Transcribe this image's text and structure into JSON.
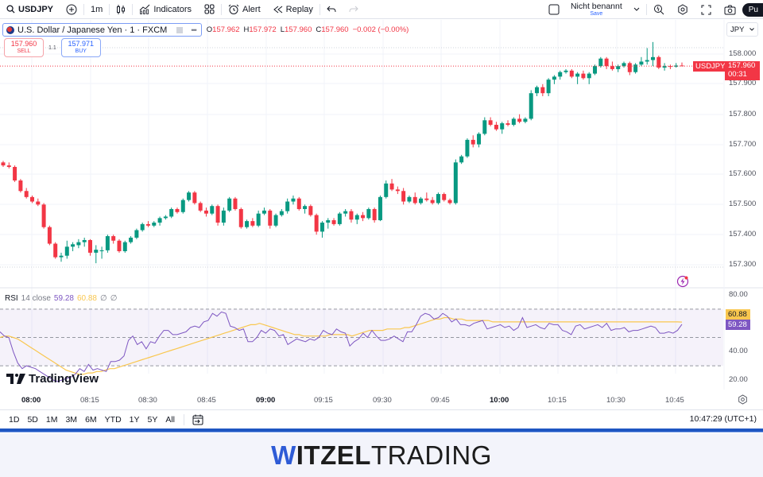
{
  "toolbar": {
    "symbol": "USDJPY",
    "interval": "1m",
    "indicators_label": "Indicators",
    "alert_label": "Alert",
    "replay_label": "Replay",
    "layout_name": "Nicht benannt",
    "save_label": "Save",
    "publish_label": "Pu"
  },
  "legend": {
    "title": "U.S. Dollar / Japanese Yen · 1 · FXCM",
    "ohlc": {
      "o_key": "O",
      "o": "157.962",
      "h_key": "H",
      "h": "157.972",
      "l_key": "L",
      "l": "157.960",
      "c_key": "C",
      "c": "157.960",
      "change": "−0.002 (−0.00%)"
    }
  },
  "trade": {
    "sell_price": "157.960",
    "sell_label": "SELL",
    "spread": "1.1",
    "buy_price": "157.971",
    "buy_label": "BUY"
  },
  "currency": "JPY",
  "price_axis": [
    "158.000",
    "157.900",
    "157.800",
    "157.700",
    "157.600",
    "157.500",
    "157.400",
    "157.300"
  ],
  "last_price": {
    "symbol": "USDJPY",
    "price": "157.960",
    "countdown": "00:31"
  },
  "rsi": {
    "label": "RSI",
    "params": "14 close",
    "value": "59.28",
    "ma_value": "60.88",
    "extra1": "∅",
    "extra2": "∅",
    "axis": [
      "80.00",
      "40.00",
      "20.00"
    ],
    "color_rsi": "#7e57c2",
    "color_ma": "#f9c74f"
  },
  "time_axis": [
    {
      "label": "08:00",
      "bold": true
    },
    {
      "label": "08:15",
      "bold": false
    },
    {
      "label": "08:30",
      "bold": false
    },
    {
      "label": "08:45",
      "bold": false
    },
    {
      "label": "09:00",
      "bold": true
    },
    {
      "label": "09:15",
      "bold": false
    },
    {
      "label": "09:30",
      "bold": false
    },
    {
      "label": "09:45",
      "bold": false
    },
    {
      "label": "10:00",
      "bold": true
    },
    {
      "label": "10:15",
      "bold": false
    },
    {
      "label": "10:30",
      "bold": false
    },
    {
      "label": "10:45",
      "bold": false
    }
  ],
  "branding": {
    "logo": "TradingView"
  },
  "ranges": [
    "1D",
    "5D",
    "1M",
    "3M",
    "6M",
    "YTD",
    "1Y",
    "5Y",
    "All"
  ],
  "clock": "10:47:29 (UTC+1)",
  "footer": {
    "w": "W",
    "bold": "ITZEL",
    "light": "TRADING"
  },
  "colors": {
    "up": "#089981",
    "down": "#f23645",
    "accent": "#2962ff"
  },
  "candles": [
    [
      157.64,
      157.645,
      157.625,
      157.63
    ],
    [
      157.63,
      157.64,
      157.62,
      157.625
    ],
    [
      157.625,
      157.63,
      157.575,
      157.58
    ],
    [
      157.58,
      157.585,
      157.54,
      157.545
    ],
    [
      157.545,
      157.555,
      157.52,
      157.525
    ],
    [
      157.525,
      157.53,
      157.505,
      157.51
    ],
    [
      157.51,
      157.52,
      157.495,
      157.5
    ],
    [
      157.5,
      157.505,
      157.42,
      157.425
    ],
    [
      157.425,
      157.43,
      157.365,
      157.37
    ],
    [
      157.37,
      157.375,
      157.32,
      157.325
    ],
    [
      157.325,
      157.34,
      157.31,
      157.33
    ],
    [
      157.33,
      157.38,
      157.32,
      157.36
    ],
    [
      157.36,
      157.375,
      157.345,
      157.368
    ],
    [
      157.365,
      157.385,
      157.355,
      157.375
    ],
    [
      157.375,
      157.39,
      157.36,
      157.382
    ],
    [
      157.382,
      157.385,
      157.33,
      157.34
    ],
    [
      157.34,
      157.365,
      157.305,
      157.35
    ],
    [
      157.345,
      157.36,
      157.32,
      157.348
    ],
    [
      157.348,
      157.4,
      157.34,
      157.395
    ],
    [
      157.395,
      157.4,
      157.37,
      157.38
    ],
    [
      157.38,
      157.385,
      157.34,
      157.345
    ],
    [
      157.345,
      157.38,
      157.34,
      157.375
    ],
    [
      157.375,
      157.395,
      157.37,
      157.39
    ],
    [
      157.39,
      157.42,
      157.385,
      157.415
    ],
    [
      157.415,
      157.44,
      157.41,
      157.435
    ],
    [
      157.435,
      157.445,
      157.425,
      157.43
    ],
    [
      157.43,
      157.445,
      157.425,
      157.44
    ],
    [
      157.44,
      157.46,
      157.43,
      157.455
    ],
    [
      157.455,
      157.465,
      157.45,
      157.46
    ],
    [
      157.46,
      157.49,
      157.455,
      157.485
    ],
    [
      157.485,
      157.49,
      157.47,
      157.475
    ],
    [
      157.475,
      157.52,
      157.47,
      157.515
    ],
    [
      157.515,
      157.545,
      157.51,
      157.54
    ],
    [
      157.54,
      157.545,
      157.5,
      157.505
    ],
    [
      157.505,
      157.51,
      157.475,
      157.48
    ],
    [
      157.48,
      157.49,
      157.46,
      157.47
    ],
    [
      157.47,
      157.5,
      157.465,
      157.495
    ],
    [
      157.495,
      157.5,
      157.43,
      157.44
    ],
    [
      157.44,
      157.49,
      157.43,
      157.48
    ],
    [
      157.48,
      157.525,
      157.475,
      157.52
    ],
    [
      157.52,
      157.525,
      157.48,
      157.485
    ],
    [
      157.485,
      157.49,
      157.42,
      157.425
    ],
    [
      157.425,
      157.45,
      157.42,
      157.445
    ],
    [
      157.445,
      157.455,
      157.425,
      157.43
    ],
    [
      157.43,
      157.48,
      157.425,
      157.47
    ],
    [
      157.47,
      157.49,
      157.465,
      157.48
    ],
    [
      157.48,
      157.485,
      157.42,
      157.43
    ],
    [
      157.43,
      157.47,
      157.425,
      157.465
    ],
    [
      157.465,
      157.485,
      157.46,
      157.478
    ],
    [
      157.478,
      157.52,
      157.47,
      157.51
    ],
    [
      157.51,
      157.53,
      157.5,
      157.52
    ],
    [
      157.52,
      157.525,
      157.48,
      157.485
    ],
    [
      157.485,
      157.5,
      157.47,
      157.495
    ],
    [
      157.495,
      157.5,
      157.46,
      157.465
    ],
    [
      157.465,
      157.47,
      157.4,
      157.41
    ],
    [
      157.41,
      157.445,
      157.39,
      157.44
    ],
    [
      157.44,
      157.455,
      157.42,
      157.448
    ],
    [
      157.448,
      157.455,
      157.43,
      157.435
    ],
    [
      157.435,
      157.475,
      157.43,
      157.47
    ],
    [
      157.47,
      157.485,
      157.46,
      157.478
    ],
    [
      157.478,
      157.485,
      157.44,
      157.45
    ],
    [
      157.45,
      157.47,
      157.435,
      157.465
    ],
    [
      157.465,
      157.475,
      157.445,
      157.455
    ],
    [
      157.455,
      157.49,
      157.45,
      157.485
    ],
    [
      157.485,
      157.49,
      157.44,
      157.448
    ],
    [
      157.448,
      157.53,
      157.445,
      157.525
    ],
    [
      157.525,
      157.58,
      157.52,
      157.57
    ],
    [
      157.57,
      157.585,
      157.545,
      157.55
    ],
    [
      157.55,
      157.56,
      157.535,
      157.545
    ],
    [
      157.545,
      157.555,
      157.5,
      157.51
    ],
    [
      157.51,
      157.53,
      157.505,
      157.525
    ],
    [
      157.525,
      157.54,
      157.5,
      157.505
    ],
    [
      157.505,
      157.525,
      157.5,
      157.52
    ],
    [
      157.52,
      157.54,
      157.51,
      157.515
    ],
    [
      157.515,
      157.525,
      157.5,
      157.505
    ],
    [
      157.505,
      157.54,
      157.5,
      157.535
    ],
    [
      157.535,
      157.54,
      157.51,
      157.515
    ],
    [
      157.515,
      157.52,
      157.5,
      157.505
    ],
    [
      157.505,
      157.65,
      157.5,
      157.64
    ],
    [
      157.64,
      157.665,
      157.635,
      157.66
    ],
    [
      157.66,
      157.72,
      157.655,
      157.715
    ],
    [
      157.715,
      157.73,
      157.69,
      157.7
    ],
    [
      157.7,
      157.74,
      157.69,
      157.735
    ],
    [
      157.735,
      157.79,
      157.73,
      157.78
    ],
    [
      157.78,
      157.79,
      157.76,
      157.765
    ],
    [
      157.765,
      157.775,
      157.745,
      157.75
    ],
    [
      157.75,
      157.775,
      157.735,
      157.77
    ],
    [
      157.77,
      157.78,
      157.76,
      157.765
    ],
    [
      157.765,
      157.79,
      157.76,
      157.785
    ],
    [
      157.785,
      157.8,
      157.77,
      157.775
    ],
    [
      157.775,
      157.79,
      157.77,
      157.785
    ],
    [
      157.785,
      157.88,
      157.78,
      157.87
    ],
    [
      157.87,
      157.895,
      157.86,
      157.89
    ],
    [
      157.89,
      157.9,
      157.86,
      157.87
    ],
    [
      157.87,
      157.92,
      157.86,
      157.915
    ],
    [
      157.915,
      157.93,
      157.9,
      157.925
    ],
    [
      157.925,
      157.945,
      157.915,
      157.94
    ],
    [
      157.94,
      157.95,
      157.935,
      157.945
    ],
    [
      157.945,
      157.95,
      157.92,
      157.925
    ],
    [
      157.925,
      157.94,
      157.9,
      157.935
    ],
    [
      157.935,
      157.945,
      157.915,
      157.92
    ],
    [
      157.92,
      157.94,
      157.9,
      157.935
    ],
    [
      157.935,
      157.965,
      157.93,
      157.96
    ],
    [
      157.96,
      157.99,
      157.955,
      157.985
    ],
    [
      157.985,
      157.99,
      157.95,
      157.96
    ],
    [
      157.96,
      157.975,
      157.945,
      157.95
    ],
    [
      157.95,
      157.965,
      157.94,
      157.96
    ],
    [
      157.96,
      157.975,
      157.955,
      157.97
    ],
    [
      157.97,
      157.975,
      157.93,
      157.94
    ],
    [
      157.94,
      157.97,
      157.935,
      157.965
    ],
    [
      157.965,
      157.99,
      157.96,
      157.975
    ],
    [
      157.975,
      158.02,
      157.965,
      157.98
    ],
    [
      157.98,
      158.04,
      157.96,
      157.99
    ],
    [
      157.99,
      157.995,
      157.95,
      157.955
    ],
    [
      157.955,
      157.97,
      157.945,
      157.96
    ],
    [
      157.96,
      157.965,
      157.95,
      157.958
    ],
    [
      157.958,
      157.97,
      157.955,
      157.962
    ],
    [
      157.962,
      157.972,
      157.96,
      157.96
    ]
  ],
  "rsi_series": [
    54,
    51,
    50,
    40,
    32,
    28,
    30,
    29,
    28,
    26,
    24,
    22,
    20,
    19,
    20,
    21,
    22,
    24,
    28,
    26,
    31,
    27,
    28,
    27,
    26,
    33,
    33,
    34,
    37,
    48,
    51,
    45,
    47,
    42,
    47,
    46,
    51,
    55,
    55,
    52,
    52,
    53,
    54,
    57,
    58,
    57,
    61,
    62,
    67,
    65,
    68,
    67,
    58,
    57,
    55,
    56,
    47,
    47,
    50,
    55,
    53,
    56,
    55,
    51,
    52,
    45,
    47,
    49,
    48,
    47,
    49,
    48,
    50,
    55,
    53,
    52,
    56,
    54,
    53,
    44,
    47,
    49,
    53,
    50,
    55,
    51,
    48,
    48,
    49,
    51,
    49,
    47,
    54,
    54,
    59,
    65,
    67,
    66,
    63,
    64,
    67,
    65,
    61,
    63,
    59,
    59,
    58,
    60,
    61,
    62,
    56,
    57,
    58,
    59,
    57,
    58,
    55,
    57,
    64,
    57,
    58,
    59,
    57,
    56,
    60,
    59,
    59,
    55,
    54,
    52,
    58,
    59,
    56,
    57,
    58,
    59,
    57,
    60,
    55,
    56,
    56,
    57,
    54,
    55,
    55,
    56,
    57,
    58,
    57,
    53,
    53,
    54,
    53,
    55,
    59.28
  ],
  "rsi_ma_series": [
    50,
    51,
    51,
    50,
    49,
    47,
    45,
    43,
    41,
    39,
    37,
    35,
    33,
    31,
    29,
    27,
    26,
    25,
    24,
    24,
    25,
    25,
    26,
    26,
    27,
    28,
    28,
    29,
    30,
    31,
    32,
    33,
    34,
    35,
    36,
    37,
    38,
    39,
    40,
    41,
    42,
    43,
    44,
    45,
    46,
    47,
    48,
    49,
    50,
    51,
    52,
    53,
    54,
    55,
    56,
    57,
    58,
    59,
    59,
    60,
    59,
    58,
    57,
    56,
    55,
    54,
    53,
    52,
    52,
    51,
    51,
    51,
    51,
    51,
    51,
    52,
    52,
    52,
    52,
    52,
    51,
    52,
    53,
    54,
    55,
    55,
    55,
    55,
    56,
    56,
    56,
    56,
    57,
    57,
    58,
    59,
    60,
    61,
    62,
    63,
    63,
    64,
    64,
    63,
    63,
    63,
    62,
    62,
    62,
    62,
    62,
    62,
    61,
    61,
    61,
    61,
    61,
    61,
    61,
    61,
    61,
    61,
    61,
    61,
    61,
    61,
    61,
    61,
    61,
    61,
    61,
    61,
    61,
    61,
    61,
    61,
    61,
    61,
    61,
    61,
    61,
    61,
    61,
    61,
    61,
    61,
    61,
    61,
    61,
    61,
    61,
    61,
    61,
    61,
    61,
    60.88
  ]
}
